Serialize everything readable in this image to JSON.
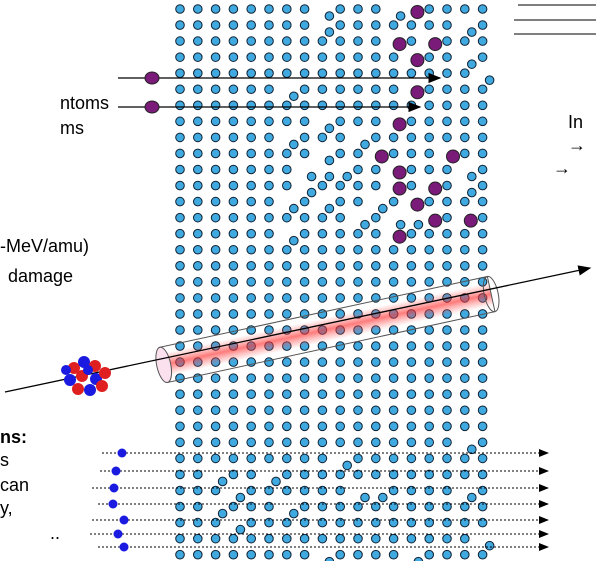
{
  "labels": {
    "top_line_1": "ntoms",
    "top_line_2": "ms",
    "mid_line_1": "-MeV/amu)",
    "mid_line_2": "damage",
    "bottom_heading": "ns:",
    "bottom_line_1": "s",
    "bottom_line_2": "can",
    "bottom_line_3": "y,",
    "bottom_line_4": "..",
    "right_line_1": "In",
    "right_line_2": "→",
    "right_line_3": "→"
  }
}
